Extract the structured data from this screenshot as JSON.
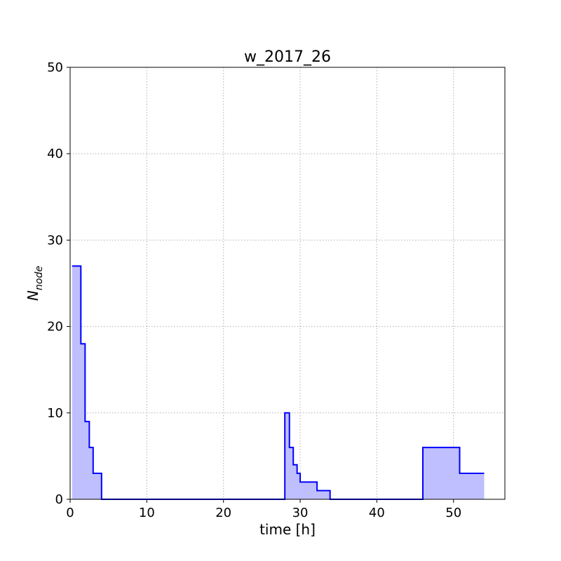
{
  "chart_data": {
    "type": "area",
    "title": "w_2017_26",
    "xlabel": "time [h]",
    "ylabel_main": "N",
    "ylabel_sub": "node",
    "xlim": [
      0,
      56.7
    ],
    "ylim": [
      0,
      50
    ],
    "xticks": [
      0,
      10,
      20,
      30,
      40,
      50
    ],
    "yticks": [
      0,
      10,
      20,
      30,
      40,
      50
    ],
    "grid": true,
    "step": "post",
    "colors": {
      "line": "#0000ff",
      "fill": "#bfbfff"
    },
    "x": [
      0.25,
      1.4,
      1.95,
      2.5,
      3.0,
      4.1,
      28.0,
      28.6,
      29.1,
      29.6,
      30.0,
      32.2,
      33.9,
      46.0,
      50.8,
      54.0
    ],
    "values": [
      27,
      18,
      9,
      6,
      3,
      0,
      10,
      6,
      4,
      3,
      2,
      1,
      0,
      6,
      3,
      3
    ]
  }
}
